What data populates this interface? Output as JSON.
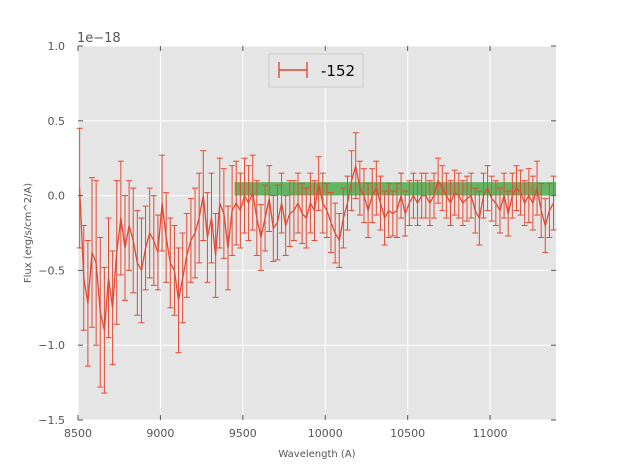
{
  "chart_data": {
    "type": "line",
    "xlabel": "Wavelength (A)",
    "ylabel": "Flux (erg/s/cm^2/A)",
    "y_offset_label": "1e−18",
    "xlim": [
      8500,
      11400
    ],
    "ylim": [
      -1.5,
      1.0
    ],
    "x_ticks": [
      8500,
      9000,
      9500,
      10000,
      10500,
      11000
    ],
    "x_tick_labels": [
      "8500",
      "9000",
      "9500",
      "10000",
      "10500",
      "11000"
    ],
    "y_ticks": [
      -1.5,
      -1.0,
      -0.5,
      0.0,
      0.5,
      1.0
    ],
    "y_tick_labels": [
      "−1.5",
      "−1.0",
      "−0.5",
      "0.0",
      "0.5",
      "1.0"
    ],
    "grid": true,
    "legend_position": "top-center",
    "colors": {
      "series": "#E24A33",
      "band": "#2CA02C",
      "background": "#E5E5E5",
      "grid": "#FFFFFF"
    },
    "band": {
      "x_start": 9450,
      "x_end": 11400,
      "y_low": 0.0,
      "y_high": 0.09
    },
    "series": [
      {
        "name": "-152",
        "x": [
          8510,
          8535,
          8560,
          8585,
          8610,
          8635,
          8660,
          8685,
          8710,
          8735,
          8760,
          8785,
          8810,
          8835,
          8860,
          8885,
          8910,
          8935,
          8960,
          8985,
          9010,
          9035,
          9060,
          9085,
          9110,
          9135,
          9160,
          9185,
          9210,
          9235,
          9260,
          9285,
          9310,
          9335,
          9360,
          9385,
          9410,
          9435,
          9460,
          9485,
          9510,
          9535,
          9560,
          9585,
          9610,
          9635,
          9660,
          9685,
          9710,
          9735,
          9760,
          9785,
          9810,
          9835,
          9860,
          9885,
          9910,
          9935,
          9960,
          9985,
          10010,
          10035,
          10060,
          10085,
          10110,
          10135,
          10160,
          10185,
          10210,
          10235,
          10260,
          10285,
          10310,
          10335,
          10360,
          10385,
          10410,
          10435,
          10460,
          10485,
          10510,
          10535,
          10560,
          10585,
          10610,
          10635,
          10660,
          10685,
          10710,
          10735,
          10760,
          10785,
          10810,
          10835,
          10860,
          10885,
          10910,
          10935,
          10960,
          10985,
          11010,
          11035,
          11060,
          11085,
          11110,
          11135,
          11160,
          11185,
          11210,
          11235,
          11260,
          11285,
          11310,
          11335,
          11360,
          11385
        ],
        "y": [
          0.05,
          -0.55,
          -0.72,
          -0.38,
          -0.45,
          -0.78,
          -0.9,
          -0.55,
          -0.75,
          -0.38,
          -0.15,
          -0.35,
          -0.2,
          -0.3,
          -0.45,
          -0.5,
          -0.35,
          -0.25,
          -0.3,
          -0.38,
          -0.05,
          -0.28,
          -0.45,
          -0.5,
          -0.7,
          -0.55,
          -0.4,
          -0.3,
          -0.25,
          -0.15,
          0.0,
          -0.28,
          -0.15,
          -0.4,
          -0.05,
          -0.12,
          -0.35,
          -0.1,
          -0.05,
          -0.1,
          0.0,
          -0.05,
          0.02,
          -0.15,
          -0.28,
          -0.15,
          -0.02,
          -0.22,
          -0.18,
          -0.05,
          -0.2,
          -0.12,
          -0.1,
          -0.05,
          -0.12,
          -0.15,
          -0.05,
          -0.1,
          0.08,
          -0.05,
          -0.1,
          -0.18,
          -0.25,
          -0.3,
          -0.15,
          -0.05,
          0.1,
          0.2,
          0.05,
          0.0,
          -0.1,
          0.0,
          0.05,
          -0.05,
          -0.15,
          -0.1,
          -0.12,
          -0.1,
          0.0,
          -0.12,
          -0.05,
          0.0,
          -0.05,
          0.0,
          0.0,
          -0.05,
          0.0,
          0.1,
          0.05,
          0.0,
          -0.05,
          0.02,
          0.0,
          -0.05,
          -0.02,
          0.0,
          -0.1,
          -0.15,
          0.0,
          0.05,
          -0.02,
          -0.05,
          -0.1,
          0.0,
          -0.12,
          0.0,
          0.05,
          0.02,
          -0.05,
          0.0,
          -0.05,
          0.05,
          -0.1,
          -0.2,
          -0.1,
          -0.05
        ],
        "yerr": [
          0.4,
          0.35,
          0.42,
          0.5,
          0.55,
          0.5,
          0.42,
          0.4,
          0.38,
          0.48,
          0.38,
          0.35,
          0.3,
          0.35,
          0.35,
          0.35,
          0.28,
          0.3,
          0.3,
          0.25,
          0.32,
          0.3,
          0.3,
          0.3,
          0.35,
          0.3,
          0.28,
          0.28,
          0.3,
          0.3,
          0.3,
          0.3,
          0.3,
          0.28,
          0.3,
          0.3,
          0.28,
          0.3,
          0.28,
          0.25,
          0.25,
          0.25,
          0.25,
          0.25,
          0.22,
          0.22,
          0.22,
          0.22,
          0.25,
          0.2,
          0.2,
          0.22,
          0.2,
          0.2,
          0.2,
          0.2,
          0.2,
          0.2,
          0.18,
          0.2,
          0.18,
          0.2,
          0.2,
          0.18,
          0.2,
          0.18,
          0.2,
          0.22,
          0.18,
          0.18,
          0.18,
          0.18,
          0.18,
          0.18,
          0.18,
          0.18,
          0.15,
          0.18,
          0.15,
          0.15,
          0.15,
          0.15,
          0.15,
          0.15,
          0.15,
          0.15,
          0.15,
          0.15,
          0.15,
          0.15,
          0.15,
          0.15,
          0.15,
          0.15,
          0.15,
          0.15,
          0.15,
          0.18,
          0.15,
          0.15,
          0.15,
          0.15,
          0.15,
          0.15,
          0.15,
          0.15,
          0.15,
          0.15,
          0.15,
          0.18,
          0.18,
          0.18,
          0.18,
          0.18,
          0.18,
          0.18
        ]
      }
    ]
  }
}
